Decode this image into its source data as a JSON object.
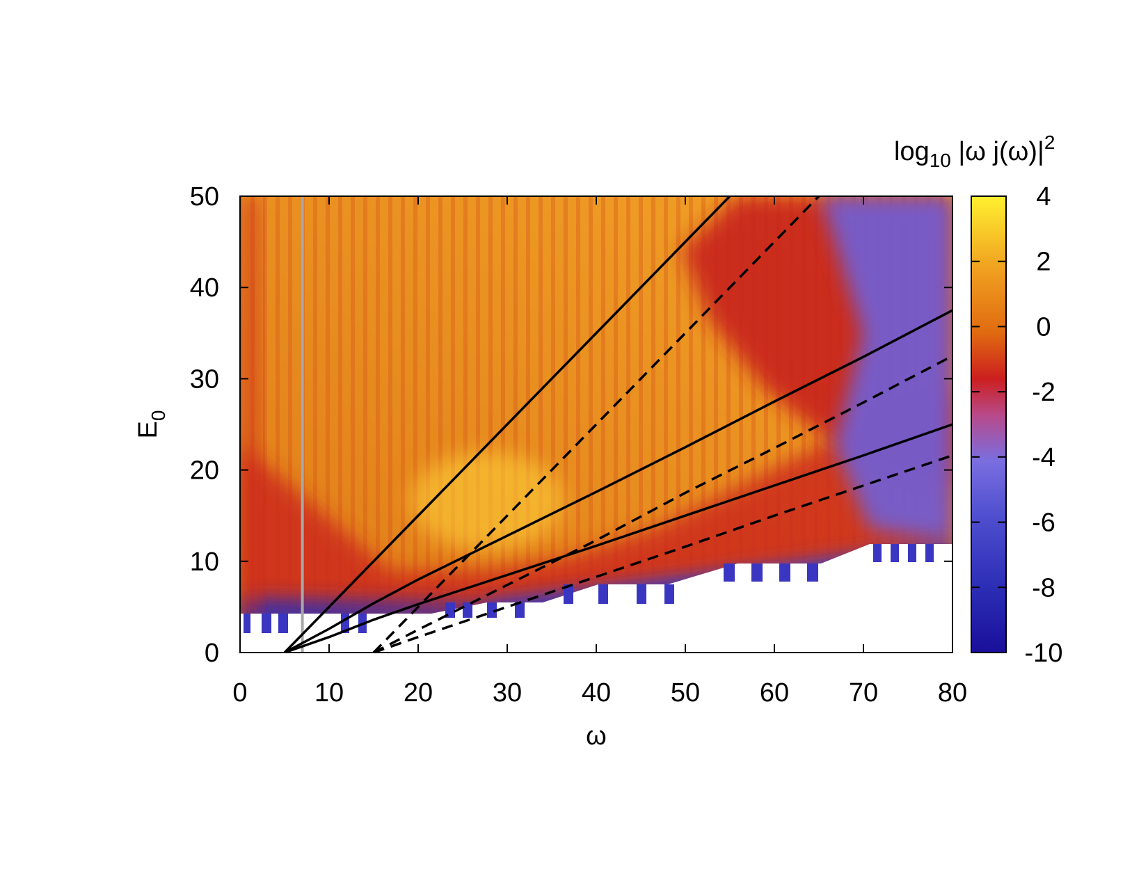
{
  "chart_data": {
    "type": "heatmap",
    "title": "",
    "xlabel": "ω",
    "ylabel_main": "E",
    "ylabel_sub": "0",
    "xlim": [
      0,
      80
    ],
    "ylim": [
      0,
      50
    ],
    "x_ticks": [
      0,
      10,
      20,
      30,
      40,
      50,
      60,
      70,
      80
    ],
    "y_ticks": [
      0,
      10,
      20,
      30,
      40,
      50
    ],
    "colorbar": {
      "title_prefix": "log",
      "title_sub": "10",
      "title_body": " |ω j(ω)|",
      "title_sup": "2",
      "range": [
        -10,
        4
      ],
      "ticks": [
        -10,
        -8,
        -6,
        -4,
        -2,
        0,
        2,
        4
      ],
      "colormap": [
        "#1a0f9a",
        "#3a3dc0",
        "#7a6ee0",
        "#b84a8a",
        "#cc1f1f",
        "#e06a10",
        "#f0a020",
        "#fff030"
      ]
    },
    "vertical_line": {
      "x": 7,
      "color": "#a8a8a8"
    },
    "solid_lines": [
      {
        "x": [
          5,
          55
        ],
        "y": [
          0,
          50
        ]
      },
      {
        "x": [
          5,
          10,
          15,
          20,
          30,
          40,
          50,
          60,
          70,
          80
        ],
        "y": [
          0,
          2.6,
          5.4,
          8.0,
          12.8,
          17.6,
          22.5,
          27.5,
          32.4,
          37.5
        ]
      },
      {
        "x": [
          5,
          10,
          15,
          20,
          30,
          40,
          50,
          60,
          70,
          80
        ],
        "y": [
          0,
          1.7,
          3.6,
          5.3,
          8.5,
          11.7,
          15.0,
          18.3,
          21.6,
          25.0
        ]
      }
    ],
    "dashed_lines": [
      {
        "x": [
          15,
          65
        ],
        "y": [
          0,
          50
        ]
      },
      {
        "x": [
          15,
          20,
          30,
          40,
          50,
          60,
          70,
          80
        ],
        "y": [
          0,
          2.5,
          7.4,
          12.3,
          17.5,
          22.4,
          27.4,
          32.5
        ]
      },
      {
        "x": [
          15,
          20,
          30,
          40,
          50,
          60,
          70,
          80
        ],
        "y": [
          0,
          1.7,
          5.0,
          8.3,
          11.6,
          15.0,
          18.3,
          21.6
        ]
      }
    ]
  }
}
